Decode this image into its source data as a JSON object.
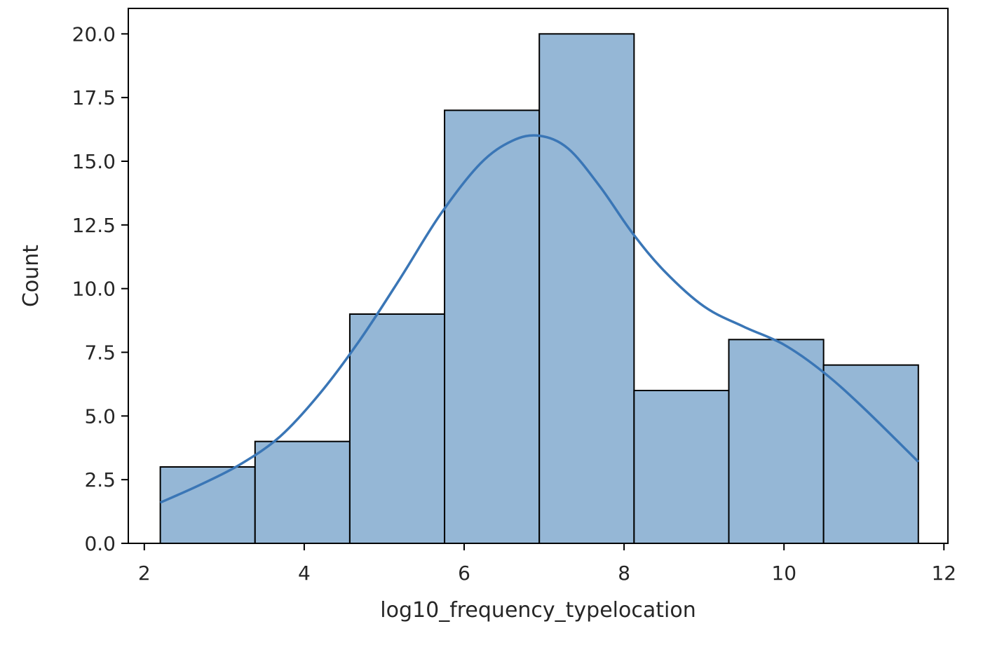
{
  "chart_data": {
    "type": "bar",
    "subtype": "histogram-with-kde",
    "title": "",
    "xlabel": "log10_frequency_typelocation",
    "ylabel": "Count",
    "xlim": [
      1.8,
      12.05
    ],
    "ylim": [
      0,
      21
    ],
    "x_ticks": [
      2,
      4,
      6,
      8,
      10,
      12
    ],
    "x_tick_labels": [
      "2",
      "4",
      "6",
      "8",
      "10",
      "12"
    ],
    "y_ticks": [
      0,
      2.5,
      5,
      7.5,
      10,
      12.5,
      15,
      17.5,
      20
    ],
    "y_tick_labels": [
      "0.0",
      "2.5",
      "5.0",
      "7.5",
      "10.0",
      "12.5",
      "15.0",
      "17.5",
      "20.0"
    ],
    "bin_edges": [
      2.2,
      3.385,
      4.57,
      5.755,
      6.94,
      8.125,
      9.31,
      10.495,
      11.68
    ],
    "counts": [
      3,
      4,
      9,
      17,
      20,
      6,
      8,
      7
    ],
    "kde": {
      "x": [
        2.2,
        2.7,
        3.2,
        3.7,
        4.2,
        4.7,
        5.2,
        5.7,
        6.2,
        6.6,
        6.94,
        7.3,
        7.7,
        8.1,
        8.5,
        9.0,
        9.5,
        10.0,
        10.5,
        11.0,
        11.68
      ],
      "y": [
        1.6,
        2.3,
        3.1,
        4.2,
        5.9,
        8.0,
        10.4,
        12.9,
        14.9,
        15.8,
        16.0,
        15.5,
        14.0,
        12.2,
        10.7,
        9.3,
        8.5,
        7.8,
        6.7,
        5.3,
        3.2
      ]
    },
    "grid": false,
    "legend": "none",
    "colors": {
      "bar_fill": "#95b7d6",
      "bar_edge": "#000000",
      "kde_line": "#3a76b6",
      "axis": "#000000"
    }
  }
}
